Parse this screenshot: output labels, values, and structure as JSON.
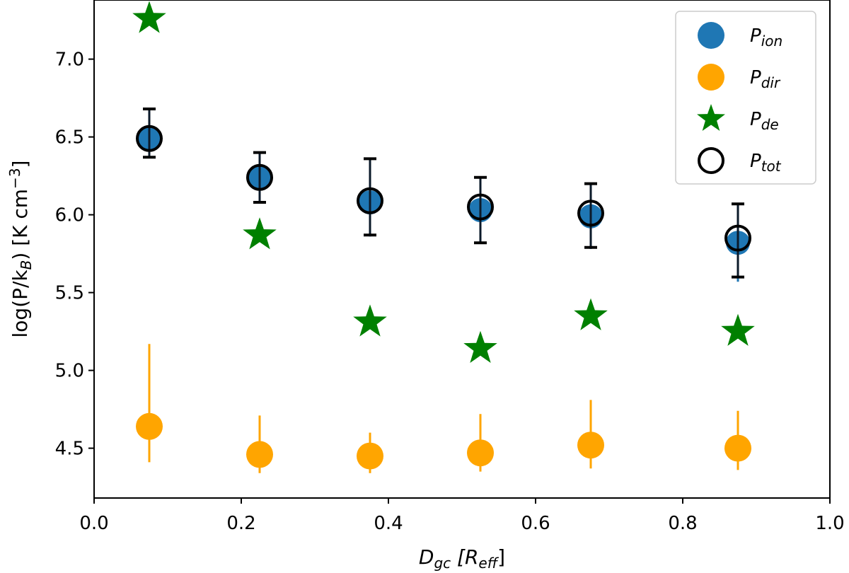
{
  "chart_data": {
    "type": "scatter",
    "xlabel": {
      "main": "D",
      "sub": "gc",
      "rest_open": " [R",
      "rest_sub": "eff",
      "rest_close": "]"
    },
    "ylabel": {
      "pre": "log(P/k",
      "sub": "B",
      "mid": ") [K cm",
      "sup": "−3",
      "post": "]"
    },
    "xlim": [
      0.0,
      1.0
    ],
    "ylim": [
      4.18,
      7.38
    ],
    "x_ticks": [
      0.0,
      0.2,
      0.4,
      0.6,
      0.8,
      1.0
    ],
    "x_tick_labels": [
      "0.0",
      "0.2",
      "0.4",
      "0.6",
      "0.8",
      "1.0"
    ],
    "y_ticks": [
      4.5,
      5.0,
      5.5,
      6.0,
      6.5,
      7.0
    ],
    "y_tick_labels": [
      "4.5",
      "5.0",
      "5.5",
      "6.0",
      "6.5",
      "7.0"
    ],
    "grid": false,
    "legend_position": "top-right",
    "series": [
      {
        "key": "ion",
        "name_main": "P",
        "name_sub": "ion",
        "marker": "circle",
        "color": "#1f77b4",
        "x": [
          0.075,
          0.225,
          0.375,
          0.525,
          0.675,
          0.875
        ],
        "y": [
          6.49,
          6.24,
          6.08,
          6.03,
          5.99,
          5.82
        ],
        "err_low": [
          6.38,
          6.08,
          5.86,
          5.82,
          5.78,
          5.57
        ],
        "err_high": [
          6.66,
          6.38,
          6.34,
          6.22,
          6.18,
          6.05
        ]
      },
      {
        "key": "dir",
        "name_main": "P",
        "name_sub": "dir",
        "marker": "circle",
        "color": "#ffa500",
        "x": [
          0.075,
          0.225,
          0.375,
          0.525,
          0.675,
          0.875
        ],
        "y": [
          4.64,
          4.46,
          4.45,
          4.47,
          4.52,
          4.5
        ],
        "err_low": [
          4.41,
          4.34,
          4.34,
          4.35,
          4.37,
          4.36
        ],
        "err_high": [
          5.17,
          4.71,
          4.6,
          4.72,
          4.81,
          4.74
        ]
      },
      {
        "key": "de",
        "name_main": "P",
        "name_sub": "de",
        "marker": "star",
        "color": "#008000",
        "x": [
          0.075,
          0.225,
          0.375,
          0.525,
          0.675,
          0.875
        ],
        "y": [
          7.26,
          5.87,
          5.31,
          5.14,
          5.35,
          5.25
        ]
      },
      {
        "key": "tot",
        "name_main": "P",
        "name_sub": "tot",
        "marker": "open-circle",
        "color": "#000000",
        "x": [
          0.075,
          0.225,
          0.375,
          0.525,
          0.675,
          0.875
        ],
        "y": [
          6.49,
          6.24,
          6.09,
          6.05,
          6.01,
          5.85
        ],
        "err_low": [
          6.37,
          6.08,
          5.87,
          5.82,
          5.79,
          5.6
        ],
        "err_high": [
          6.68,
          6.4,
          6.36,
          6.24,
          6.2,
          6.07
        ]
      }
    ]
  }
}
